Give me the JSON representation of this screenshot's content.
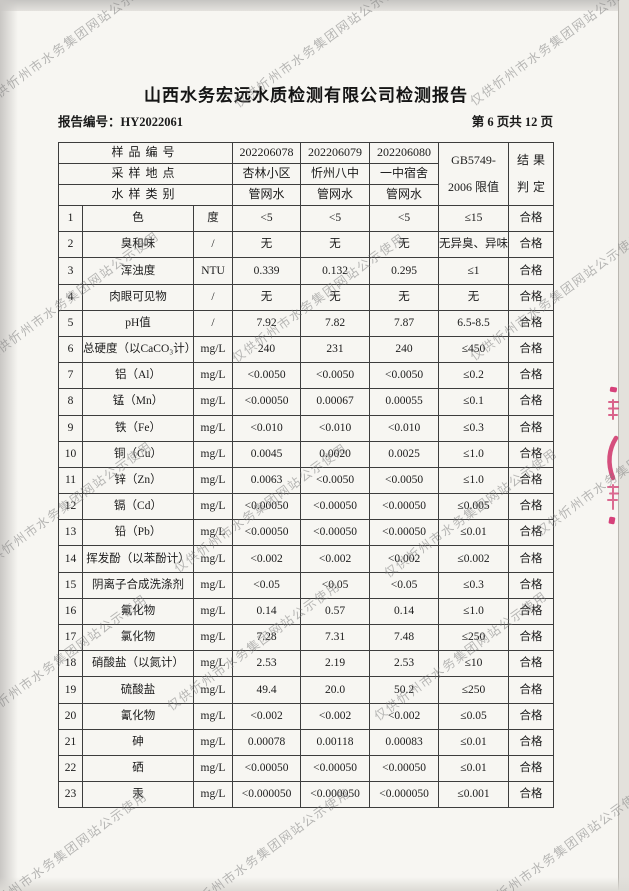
{
  "page": {
    "title": "山西水务宏远水质检测有限公司检测报告",
    "report_no": "报告编号：HY2022061",
    "page_indicator": "第 6 页共 12 页"
  },
  "watermark": {
    "text": "仅供忻州市水务集团网站公示使用",
    "color": "#7a7a7a"
  },
  "seal": {
    "description": "red stamp fragment cut at right page edge",
    "color": "#cf3168"
  },
  "table": {
    "header": {
      "sample_no_label": "样品编号",
      "sample_site_label": "采样地点",
      "sample_type_label": "水样类别",
      "sample_ids": [
        "202206078",
        "202206079",
        "202206080"
      ],
      "sample_sites": [
        "杏林小区",
        "忻州八中",
        "一中宿舍"
      ],
      "sample_types": [
        "管网水",
        "管网水",
        "管网水"
      ],
      "limit_line1": "GB5749-",
      "limit_line2": "2006 限值",
      "result_line1": "结果",
      "result_line2": "判定"
    },
    "rows": [
      [
        "1",
        "色",
        "度",
        "<5",
        "<5",
        "<5",
        "≤15",
        "合格"
      ],
      [
        "2",
        "臭和味",
        "/",
        "无",
        "无",
        "无",
        "无异臭、异味",
        "合格"
      ],
      [
        "3",
        "浑浊度",
        "NTU",
        "0.339",
        "0.132",
        "0.295",
        "≤1",
        "合格"
      ],
      [
        "4",
        "肉眼可见物",
        "/",
        "无",
        "无",
        "无",
        "无",
        "合格"
      ],
      [
        "5",
        "pH值",
        "/",
        "7.92",
        "7.82",
        "7.87",
        "6.5-8.5",
        "合格"
      ],
      [
        "6",
        "总硬度（以CaCO₃计）",
        "mg/L",
        "240",
        "231",
        "240",
        "≤450",
        "合格"
      ],
      [
        "7",
        "铝（Al）",
        "mg/L",
        "<0.0050",
        "<0.0050",
        "<0.0050",
        "≤0.2",
        "合格"
      ],
      [
        "8",
        "锰（Mn）",
        "mg/L",
        "<0.00050",
        "0.00067",
        "0.00055",
        "≤0.1",
        "合格"
      ],
      [
        "9",
        "铁（Fe）",
        "mg/L",
        "<0.010",
        "<0.010",
        "<0.010",
        "≤0.3",
        "合格"
      ],
      [
        "10",
        "铜（Cu）",
        "mg/L",
        "0.0045",
        "0.0020",
        "0.0025",
        "≤1.0",
        "合格"
      ],
      [
        "11",
        "锌（Zn）",
        "mg/L",
        "0.0063",
        "<0.0050",
        "<0.0050",
        "≤1.0",
        "合格"
      ],
      [
        "12",
        "镉（Cd）",
        "mg/L",
        "<0.00050",
        "<0.00050",
        "<0.00050",
        "≤0.005",
        "合格"
      ],
      [
        "13",
        "铅（Pb）",
        "mg/L",
        "<0.00050",
        "<0.00050",
        "<0.00050",
        "≤0.01",
        "合格"
      ],
      [
        "14",
        "挥发酚（以苯酚计）",
        "mg/L",
        "<0.002",
        "<0.002",
        "<0.002",
        "≤0.002",
        "合格"
      ],
      [
        "15",
        "阴离子合成洗涤剂",
        "mg/L",
        "<0.05",
        "<0.05",
        "<0.05",
        "≤0.3",
        "合格"
      ],
      [
        "16",
        "氟化物",
        "mg/L",
        "0.14",
        "0.57",
        "0.14",
        "≤1.0",
        "合格"
      ],
      [
        "17",
        "氯化物",
        "mg/L",
        "7.28",
        "7.31",
        "7.48",
        "≤250",
        "合格"
      ],
      [
        "18",
        "硝酸盐（以氮计）",
        "mg/L",
        "2.53",
        "2.19",
        "2.53",
        "≤10",
        "合格"
      ],
      [
        "19",
        "硫酸盐",
        "mg/L",
        "49.4",
        "20.0",
        "50.2",
        "≤250",
        "合格"
      ],
      [
        "20",
        "氰化物",
        "mg/L",
        "<0.002",
        "<0.002",
        "<0.002",
        "≤0.05",
        "合格"
      ],
      [
        "21",
        "砷",
        "mg/L",
        "0.00078",
        "0.00118",
        "0.00083",
        "≤0.01",
        "合格"
      ],
      [
        "22",
        "硒",
        "mg/L",
        "<0.00050",
        "<0.00050",
        "<0.00050",
        "≤0.01",
        "合格"
      ],
      [
        "23",
        "汞",
        "mg/L",
        "<0.000050",
        "<0.000050",
        "<0.000050",
        "≤0.001",
        "合格"
      ]
    ]
  }
}
